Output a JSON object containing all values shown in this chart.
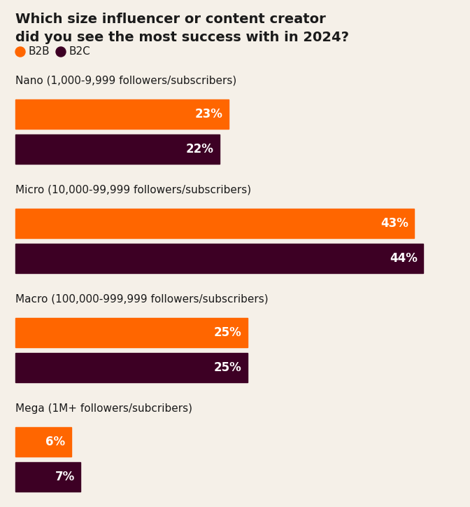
{
  "title_line1": "Which size influencer or content creator",
  "title_line2": "did you see the most success with in 2024?",
  "background_color": "#f5f0e8",
  "b2b_color": "#ff6600",
  "b2c_color": "#3d0024",
  "text_color": "#1a1a1a",
  "bar_label_color": "#ffffff",
  "categories": [
    "Nano (1,000-9,999 followers/subscribers)",
    "Micro (10,000-99,999 followers/subscribers)",
    "Macro (100,000-999,999 followers/subscribers)",
    "Mega (1M+ followers/subcribers)"
  ],
  "b2b_values": [
    23,
    43,
    25,
    6
  ],
  "b2c_values": [
    22,
    44,
    25,
    7
  ],
  "max_value": 46,
  "legend_b2b": "B2B",
  "legend_b2c": "B2C"
}
